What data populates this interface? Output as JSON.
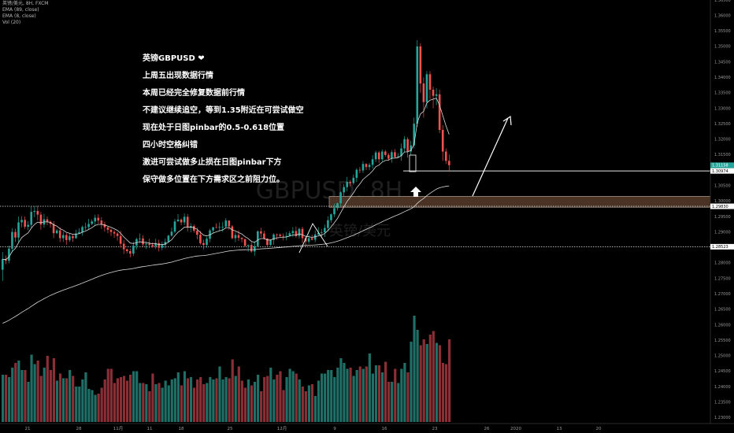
{
  "header": {
    "symbol_line": "英镑/美元, 8H, FXCM",
    "ema1": "EMA (89, close)",
    "ema2": "EMA (8, close)",
    "vol": "Vol (20)"
  },
  "watermark": {
    "main": "GBPUSD, 8H",
    "sub": "英镑/美元"
  },
  "annotations": [
    "英镑GBPUSD ❤",
    "上周五出现数据行情",
    "本周已经完全修复数据前行情",
    "不建议继续追空，等到1.35附近在可尝试做空",
    "现在处于日图pinbar的0.5-0.618位置",
    "四小时空格纠错",
    "激进可尝试做多止损在日图pinbar下方",
    "保守做多位置在下方需求区之前阻力位。"
  ],
  "chart_data": {
    "type": "candlestick",
    "title": "英镑/美元, 8H, FXCM",
    "yaxis": {
      "min": 1.225,
      "max": 1.365,
      "ticks": [
        "1.36500",
        "1.36000",
        "1.35500",
        "1.35000",
        "1.34500",
        "1.34000",
        "1.33500",
        "1.33000",
        "1.32500",
        "1.32000",
        "1.31500",
        "1.31000",
        "1.30500",
        "1.30000",
        "1.29500",
        "1.29000",
        "1.28500",
        "1.28000",
        "1.27500",
        "1.27000",
        "1.26500",
        "1.26000",
        "1.25500",
        "1.25000",
        "1.24500",
        "1.24000",
        "1.23500",
        "1.23000"
      ]
    },
    "xaxis_ticks": [
      "21",
      "28",
      "11月",
      "11",
      "18",
      "25",
      "12月",
      "9",
      "16",
      "23",
      "26",
      "2020",
      "13",
      "20"
    ],
    "price_labels": [
      {
        "value": 1.31158,
        "text": "1.31158",
        "color": "#26a69a"
      },
      {
        "value": 1.31158,
        "text": "06:47:45",
        "color": "#26a69a",
        "offset": 1
      },
      {
        "value": 1.30974,
        "text": "1.30974",
        "color": "#ffffff"
      },
      {
        "value": 1.2983,
        "text": "1.29830",
        "color": "#ffffff"
      },
      {
        "value": 1.28523,
        "text": "1.28523",
        "color": "#ffffff"
      }
    ],
    "horizontal_lines": [
      {
        "value": 1.2983,
        "style": "dotted"
      },
      {
        "value": 1.28523,
        "style": "dotted"
      },
      {
        "value": 1.30974,
        "style": "solid"
      }
    ],
    "demand_zone": {
      "from": 1.298,
      "to": 1.3015
    },
    "candles": [
      [
        1.2778,
        1.2812,
        1.2742,
        1.2835
      ],
      [
        1.2812,
        1.2807,
        1.2796,
        1.2824
      ],
      [
        1.2807,
        1.2846,
        1.2799,
        1.2856
      ],
      [
        1.2846,
        1.29,
        1.2834,
        1.2912
      ],
      [
        1.29,
        1.2882,
        1.2868,
        1.2911
      ],
      [
        1.2882,
        1.2931,
        1.2866,
        1.295
      ],
      [
        1.2931,
        1.2939,
        1.2915,
        1.2951
      ],
      [
        1.2939,
        1.2917,
        1.291,
        1.295
      ],
      [
        1.2917,
        1.2923,
        1.2906,
        1.2935
      ],
      [
        1.2923,
        1.2965,
        1.2913,
        1.2982
      ],
      [
        1.2965,
        1.2968,
        1.2948,
        1.2983
      ],
      [
        1.2968,
        1.2956,
        1.2938,
        1.2985
      ],
      [
        1.2956,
        1.2924,
        1.2907,
        1.2965
      ],
      [
        1.2924,
        1.2941,
        1.2914,
        1.2959
      ],
      [
        1.2941,
        1.2933,
        1.2922,
        1.295
      ],
      [
        1.2933,
        1.2926,
        1.2914,
        1.2937
      ],
      [
        1.2926,
        1.2896,
        1.288,
        1.2935
      ],
      [
        1.2896,
        1.2905,
        1.2893,
        1.291
      ],
      [
        1.2905,
        1.288,
        1.2867,
        1.2915
      ],
      [
        1.288,
        1.289,
        1.2868,
        1.2902
      ],
      [
        1.289,
        1.2874,
        1.2859,
        1.2896
      ],
      [
        1.2874,
        1.2886,
        1.2868,
        1.2895
      ],
      [
        1.2886,
        1.288,
        1.2868,
        1.2893
      ],
      [
        1.288,
        1.2895,
        1.2878,
        1.2907
      ],
      [
        1.2895,
        1.2899,
        1.2893,
        1.2912
      ],
      [
        1.2899,
        1.2916,
        1.2888,
        1.2921
      ],
      [
        1.2916,
        1.2916,
        1.2906,
        1.293
      ],
      [
        1.2916,
        1.2926,
        1.2907,
        1.2942
      ],
      [
        1.2926,
        1.2934,
        1.2922,
        1.2941
      ],
      [
        1.2934,
        1.2946,
        1.2921,
        1.2956
      ],
      [
        1.2946,
        1.2937,
        1.2927,
        1.2957
      ],
      [
        1.2937,
        1.2925,
        1.291,
        1.2948
      ],
      [
        1.2925,
        1.2915,
        1.2901,
        1.2933
      ],
      [
        1.2915,
        1.2907,
        1.2896,
        1.2918
      ],
      [
        1.2907,
        1.29,
        1.2887,
        1.2911
      ],
      [
        1.29,
        1.2895,
        1.2881,
        1.2906
      ],
      [
        1.2895,
        1.2887,
        1.2872,
        1.2899
      ],
      [
        1.2887,
        1.2862,
        1.2849,
        1.2904
      ],
      [
        1.2862,
        1.2844,
        1.2829,
        1.2874
      ],
      [
        1.2844,
        1.2838,
        1.2831,
        1.2846
      ],
      [
        1.2838,
        1.283,
        1.2818,
        1.2846
      ],
      [
        1.283,
        1.2856,
        1.2823,
        1.2868
      ],
      [
        1.2856,
        1.2877,
        1.2843,
        1.2881
      ],
      [
        1.2877,
        1.2879,
        1.2863,
        1.2895
      ],
      [
        1.2879,
        1.286,
        1.2852,
        1.2889
      ],
      [
        1.286,
        1.2862,
        1.2845,
        1.287
      ],
      [
        1.2862,
        1.2858,
        1.2848,
        1.2878
      ],
      [
        1.2858,
        1.2854,
        1.2849,
        1.2866
      ],
      [
        1.2854,
        1.2864,
        1.2845,
        1.2878
      ],
      [
        1.2864,
        1.2849,
        1.2837,
        1.2875
      ],
      [
        1.2849,
        1.2858,
        1.2841,
        1.2869
      ],
      [
        1.2858,
        1.2868,
        1.2847,
        1.2879
      ],
      [
        1.2868,
        1.2888,
        1.2865,
        1.2891
      ],
      [
        1.2888,
        1.2901,
        1.2884,
        1.2914
      ],
      [
        1.2901,
        1.2934,
        1.2896,
        1.2942
      ],
      [
        1.2934,
        1.294,
        1.2934,
        1.2958
      ],
      [
        1.294,
        1.2931,
        1.2922,
        1.2944
      ],
      [
        1.2931,
        1.2949,
        1.2922,
        1.296
      ],
      [
        1.2949,
        1.2914,
        1.2901,
        1.2958
      ],
      [
        1.2914,
        1.2919,
        1.2899,
        1.2928
      ],
      [
        1.2919,
        1.2904,
        1.2898,
        1.2924
      ],
      [
        1.2904,
        1.2891,
        1.2876,
        1.2914
      ],
      [
        1.2891,
        1.2864,
        1.2859,
        1.2903
      ],
      [
        1.2864,
        1.2858,
        1.2844,
        1.2875
      ],
      [
        1.2858,
        1.2878,
        1.2849,
        1.2884
      ],
      [
        1.2878,
        1.2905,
        1.2867,
        1.291
      ],
      [
        1.2905,
        1.2915,
        1.2897,
        1.2917
      ],
      [
        1.2915,
        1.2914,
        1.2913,
        1.2928
      ],
      [
        1.2914,
        1.2916,
        1.2904,
        1.2931
      ],
      [
        1.2916,
        1.2917,
        1.2901,
        1.2932
      ],
      [
        1.2917,
        1.2937,
        1.2914,
        1.2945
      ],
      [
        1.2937,
        1.2918,
        1.2907,
        1.2937
      ],
      [
        1.2918,
        1.288,
        1.2876,
        1.2922
      ],
      [
        1.288,
        1.289,
        1.2867,
        1.2899
      ],
      [
        1.289,
        1.2881,
        1.2871,
        1.2905
      ],
      [
        1.2881,
        1.2877,
        1.2866,
        1.2883
      ],
      [
        1.2877,
        1.2855,
        1.2853,
        1.2877
      ],
      [
        1.2855,
        1.2858,
        1.2836,
        1.2859
      ],
      [
        1.2858,
        1.2837,
        1.2833,
        1.2867
      ],
      [
        1.2837,
        1.2854,
        1.2823,
        1.287
      ],
      [
        1.2854,
        1.2902,
        1.2854,
        1.2905
      ],
      [
        1.2902,
        1.2895,
        1.2883,
        1.2913
      ],
      [
        1.2895,
        1.2879,
        1.2875,
        1.2904
      ],
      [
        1.2879,
        1.2858,
        1.2851,
        1.288
      ],
      [
        1.2858,
        1.2874,
        1.2855,
        1.2876
      ],
      [
        1.2874,
        1.2892,
        1.2859,
        1.2896
      ],
      [
        1.2892,
        1.2891,
        1.2875,
        1.2895
      ],
      [
        1.2891,
        1.2887,
        1.2884,
        1.2895
      ],
      [
        1.2887,
        1.2885,
        1.2873,
        1.2895
      ],
      [
        1.2885,
        1.2887,
        1.2873,
        1.2899
      ],
      [
        1.2887,
        1.2896,
        1.2885,
        1.2903
      ],
      [
        1.2896,
        1.2903,
        1.2884,
        1.2916
      ],
      [
        1.2903,
        1.2887,
        1.2882,
        1.2918
      ],
      [
        1.2887,
        1.291,
        1.2879,
        1.2914
      ],
      [
        1.291,
        1.288,
        1.2864,
        1.2917
      ],
      [
        1.288,
        1.2869,
        1.2854,
        1.2885
      ],
      [
        1.2869,
        1.288,
        1.2862,
        1.2891
      ],
      [
        1.288,
        1.2875,
        1.2873,
        1.2891
      ],
      [
        1.2875,
        1.2892,
        1.2867,
        1.2905
      ],
      [
        1.2892,
        1.2897,
        1.2888,
        1.2915
      ],
      [
        1.2897,
        1.2899,
        1.2881,
        1.291
      ],
      [
        1.2899,
        1.2913,
        1.2884,
        1.2924
      ],
      [
        1.2913,
        1.2938,
        1.2902,
        1.2951
      ],
      [
        1.2938,
        1.2957,
        1.293,
        1.296
      ],
      [
        1.2957,
        1.2977,
        1.2948,
        1.2992
      ],
      [
        1.2977,
        1.2993,
        1.2969,
        1.2995
      ],
      [
        1.2993,
        1.3028,
        1.2982,
        1.3031
      ],
      [
        1.3028,
        1.3045,
        1.3016,
        1.3055
      ],
      [
        1.3045,
        1.3062,
        1.3032,
        1.3078
      ],
      [
        1.3062,
        1.3058,
        1.3047,
        1.3068
      ],
      [
        1.3058,
        1.3075,
        1.3053,
        1.3086
      ],
      [
        1.3075,
        1.3101,
        1.3062,
        1.3106
      ],
      [
        1.3101,
        1.3099,
        1.309,
        1.311
      ],
      [
        1.3099,
        1.312,
        1.3091,
        1.3129
      ],
      [
        1.312,
        1.311,
        1.31,
        1.3122
      ],
      [
        1.311,
        1.3117,
        1.31,
        1.3123
      ],
      [
        1.3117,
        1.3135,
        1.3105,
        1.3148
      ],
      [
        1.3135,
        1.3157,
        1.3126,
        1.3163
      ],
      [
        1.3157,
        1.3135,
        1.3123,
        1.3162
      ],
      [
        1.3135,
        1.316,
        1.3128,
        1.3167
      ],
      [
        1.316,
        1.3149,
        1.3143,
        1.3165
      ],
      [
        1.3149,
        1.3137,
        1.313,
        1.3155
      ],
      [
        1.3137,
        1.3158,
        1.3124,
        1.3165
      ],
      [
        1.3158,
        1.3142,
        1.314,
        1.3168
      ],
      [
        1.3142,
        1.3145,
        1.314,
        1.3155
      ],
      [
        1.3145,
        1.317,
        1.313,
        1.3186
      ],
      [
        1.317,
        1.32,
        1.3158,
        1.321
      ],
      [
        1.32,
        1.316,
        1.314,
        1.3206
      ],
      [
        1.316,
        1.318,
        1.315,
        1.3195
      ],
      [
        1.318,
        1.325,
        1.317,
        1.327
      ],
      [
        1.325,
        1.35,
        1.324,
        1.352
      ],
      [
        1.35,
        1.338,
        1.335,
        1.351
      ],
      [
        1.338,
        1.332,
        1.327,
        1.34
      ],
      [
        1.332,
        1.341,
        1.33,
        1.342
      ],
      [
        1.341,
        1.336,
        1.333,
        1.342
      ],
      [
        1.336,
        1.334,
        1.33,
        1.337
      ],
      [
        1.334,
        1.3345,
        1.331,
        1.3365
      ],
      [
        1.3345,
        1.323,
        1.322,
        1.336
      ],
      [
        1.323,
        1.316,
        1.313,
        1.3245
      ],
      [
        1.316,
        1.313,
        1.312,
        1.317
      ],
      [
        1.313,
        1.3116,
        1.3095,
        1.315
      ]
    ],
    "volume": [
      0.4,
      0.4,
      0.38,
      0.46,
      0.5,
      0.52,
      0.44,
      0.44,
      0.34,
      0.57,
      0.49,
      0.52,
      0.39,
      0.46,
      0.56,
      0.44,
      0.54,
      0.35,
      0.41,
      0.37,
      0.37,
      0.44,
      0.39,
      0.3,
      0.3,
      0.36,
      0.42,
      0.28,
      0.27,
      0.23,
      0.24,
      0.29,
      0.36,
      0.45,
      0.45,
      0.33,
      0.37,
      0.38,
      0.39,
      0.35,
      0.4,
      0.43,
      0.43,
      0.33,
      0.33,
      0.32,
      0.26,
      0.41,
      0.32,
      0.33,
      0.29,
      0.35,
      0.31,
      0.36,
      0.37,
      0.42,
      0.31,
      0.43,
      0.37,
      0.38,
      0.29,
      0.36,
      0.38,
      0.32,
      0.33,
      0.38,
      0.36,
      0.37,
      0.47,
      0.36,
      0.38,
      0.37,
      0.53,
      0.39,
      0.47,
      0.35,
      0.29,
      0.36,
      0.31,
      0.34,
      0.4,
      0.26,
      0.38,
      0.39,
      0.46,
      0.36,
      0.4,
      0.43,
      0.27,
      0.38,
      0.45,
      0.43,
      0.41,
      0.36,
      0.3,
      0.26,
      0.31,
      0.32,
      0.22,
      0.35,
      0.41,
      0.41,
      0.44,
      0.44,
      0.38,
      0.46,
      0.54,
      0.5,
      0.45,
      0.46,
      0.39,
      0.44,
      0.47,
      0.45,
      0.47,
      0.58,
      0.41,
      0.48,
      0.48,
      0.42,
      0.51,
      0.34,
      0.34,
      0.45,
      0.33,
      0.45,
      0.5,
      0.42,
      0.68,
      0.9,
      0.78,
      0.65,
      0.7,
      0.66,
      0.74,
      0.77,
      0.67,
      0.65,
      0.5,
      0.49,
      0.7
    ],
    "annotation_arrow": {
      "label": "up-arrow"
    }
  },
  "colors": {
    "up": "#26a69a",
    "down": "#ef5350",
    "vol_up": "#1f6f67",
    "vol_down": "#8b2f36",
    "ema": "#d8d8d8",
    "zone": "#4a3324"
  }
}
